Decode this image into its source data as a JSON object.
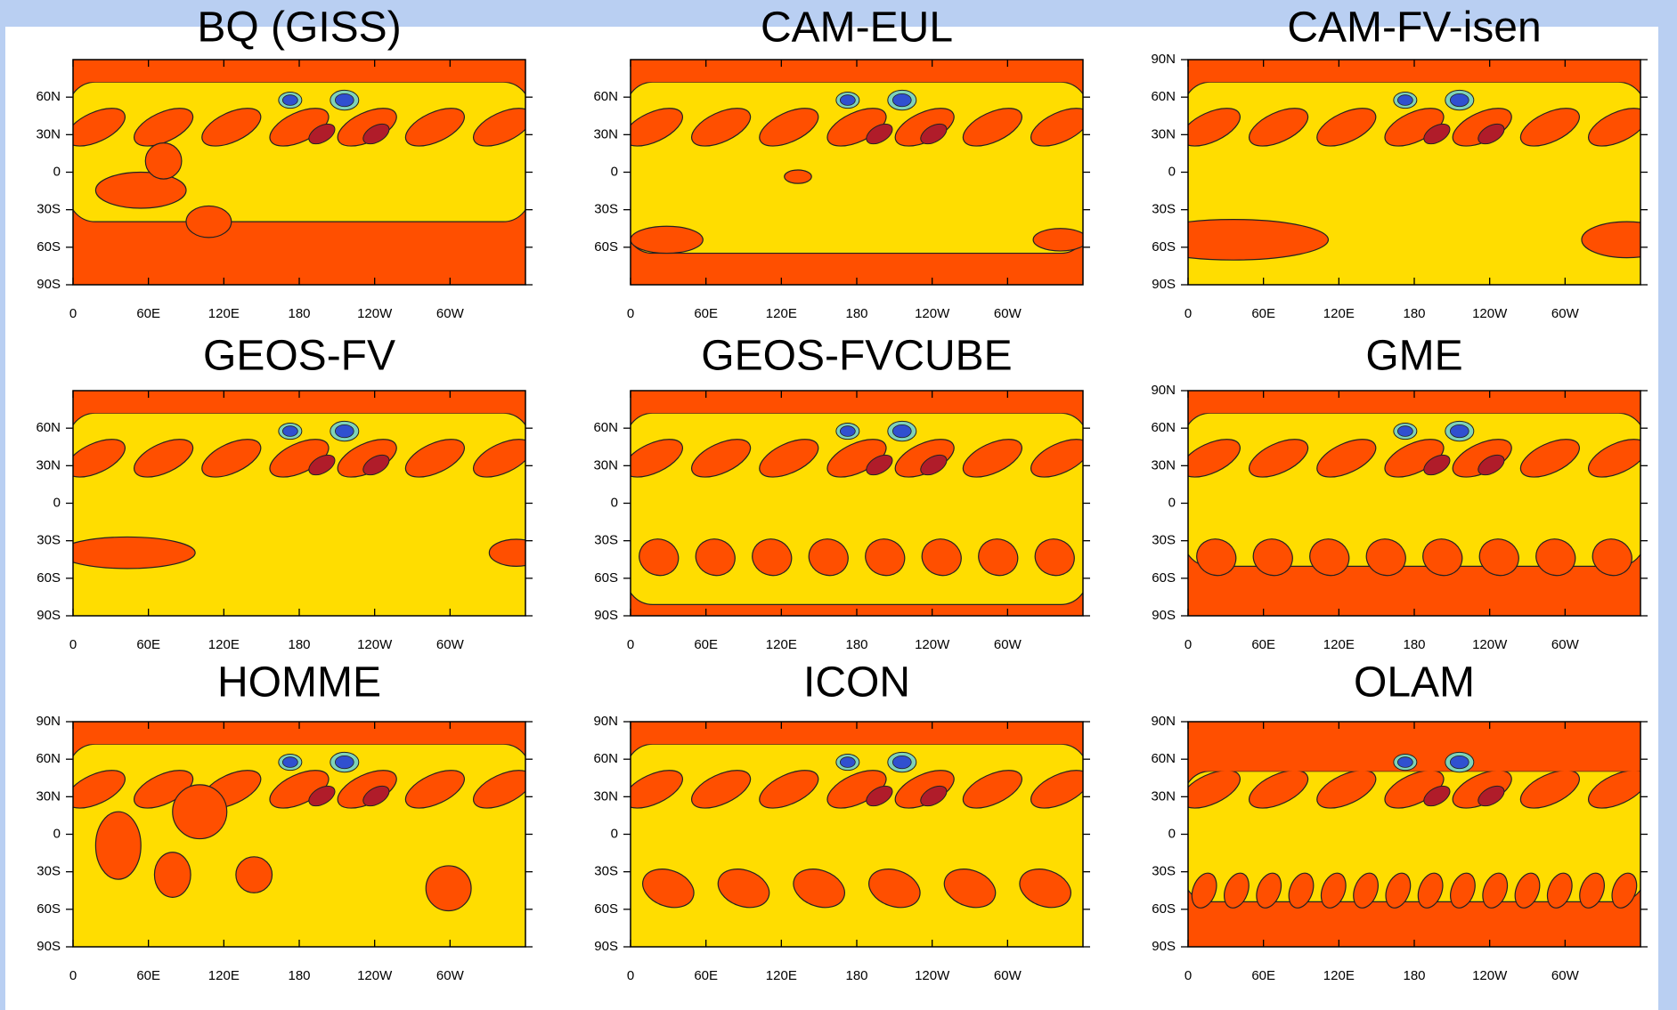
{
  "chart_data": [
    {
      "type": "contour",
      "title": "BQ (GISS)",
      "xlim": [
        0,
        360
      ],
      "ylim": [
        -90,
        90
      ],
      "xticks": [
        0,
        {
          "value": 60,
          "label": "60E"
        },
        {
          "value": 120,
          "label": "120E"
        },
        180,
        {
          "value": 240,
          "label": "120W"
        },
        {
          "value": 300,
          "label": "60W"
        }
      ],
      "yticks": [
        {
          "value": 60,
          "label": "60N"
        },
        {
          "value": 30,
          "label": "30N"
        },
        0,
        {
          "value": -30,
          "label": "30S"
        },
        {
          "value": -60,
          "label": "60S"
        },
        {
          "value": -90,
          "label": "90S"
        }
      ]
    },
    {
      "type": "contour",
      "title": "CAM-EUL",
      "xlim": [
        0,
        360
      ],
      "ylim": [
        -90,
        90
      ],
      "xticks": [
        0,
        {
          "value": 60,
          "label": "60E"
        },
        {
          "value": 120,
          "label": "120E"
        },
        180,
        {
          "value": 240,
          "label": "120W"
        },
        {
          "value": 300,
          "label": "60W"
        }
      ],
      "yticks": [
        {
          "value": 60,
          "label": "60N"
        },
        {
          "value": 30,
          "label": "30N"
        },
        0,
        {
          "value": -30,
          "label": "30S"
        },
        {
          "value": -60,
          "label": "60S"
        }
      ]
    },
    {
      "type": "contour",
      "title": "CAM-FV-isen",
      "xlim": [
        0,
        360
      ],
      "ylim": [
        -90,
        90
      ],
      "xticks": [
        0,
        {
          "value": 60,
          "label": "60E"
        },
        {
          "value": 120,
          "label": "120E"
        },
        180,
        {
          "value": 240,
          "label": "120W"
        },
        {
          "value": 300,
          "label": "60W"
        }
      ],
      "yticks": [
        {
          "value": 90,
          "label": "90N"
        },
        {
          "value": 60,
          "label": "60N"
        },
        {
          "value": 30,
          "label": "30N"
        },
        0,
        {
          "value": -30,
          "label": "30S"
        },
        {
          "value": -60,
          "label": "60S"
        },
        {
          "value": -90,
          "label": "90S"
        }
      ]
    },
    {
      "type": "contour",
      "title": "GEOS-FV",
      "xlim": [
        0,
        360
      ],
      "ylim": [
        -90,
        90
      ],
      "xticks": [
        0,
        {
          "value": 60,
          "label": "60E"
        },
        {
          "value": 120,
          "label": "120E"
        },
        180,
        {
          "value": 240,
          "label": "120W"
        },
        {
          "value": 300,
          "label": "60W"
        }
      ],
      "yticks": [
        {
          "value": 60,
          "label": "60N"
        },
        {
          "value": 30,
          "label": "30N"
        },
        0,
        {
          "value": -30,
          "label": "30S"
        },
        {
          "value": -60,
          "label": "60S"
        },
        {
          "value": -90,
          "label": "90S"
        }
      ]
    },
    {
      "type": "contour",
      "title": "GEOS-FVCUBE",
      "xlim": [
        0,
        360
      ],
      "ylim": [
        -90,
        90
      ],
      "xticks": [
        0,
        {
          "value": 60,
          "label": "60E"
        },
        {
          "value": 120,
          "label": "120E"
        },
        180,
        {
          "value": 240,
          "label": "120W"
        },
        {
          "value": 300,
          "label": "60W"
        }
      ],
      "yticks": [
        {
          "value": 60,
          "label": "60N"
        },
        {
          "value": 30,
          "label": "30N"
        },
        0,
        {
          "value": -30,
          "label": "30S"
        },
        {
          "value": -60,
          "label": "60S"
        },
        {
          "value": -90,
          "label": "90S"
        }
      ]
    },
    {
      "type": "contour",
      "title": "GME",
      "xlim": [
        0,
        360
      ],
      "ylim": [
        -90,
        90
      ],
      "xticks": [
        0,
        {
          "value": 60,
          "label": "60E"
        },
        {
          "value": 120,
          "label": "120E"
        },
        180,
        {
          "value": 240,
          "label": "120W"
        },
        {
          "value": 300,
          "label": "60W"
        }
      ],
      "yticks": [
        {
          "value": 90,
          "label": "90N"
        },
        {
          "value": 60,
          "label": "60N"
        },
        {
          "value": 30,
          "label": "30N"
        },
        0,
        {
          "value": -30,
          "label": "30S"
        },
        {
          "value": -60,
          "label": "60S"
        },
        {
          "value": -90,
          "label": "90S"
        }
      ]
    },
    {
      "type": "contour",
      "title": "HOMME",
      "xlim": [
        0,
        360
      ],
      "ylim": [
        -90,
        90
      ],
      "xticks": [
        0,
        {
          "value": 60,
          "label": "60E"
        },
        {
          "value": 120,
          "label": "120E"
        },
        180,
        {
          "value": 240,
          "label": "120W"
        },
        {
          "value": 300,
          "label": "60W"
        }
      ],
      "yticks": [
        {
          "value": 90,
          "label": "90N"
        },
        {
          "value": 60,
          "label": "60N"
        },
        {
          "value": 30,
          "label": "30N"
        },
        0,
        {
          "value": -30,
          "label": "30S"
        },
        {
          "value": -60,
          "label": "60S"
        },
        {
          "value": -90,
          "label": "90S"
        }
      ]
    },
    {
      "type": "contour",
      "title": "ICON",
      "xlim": [
        0,
        360
      ],
      "ylim": [
        -90,
        90
      ],
      "xticks": [
        0,
        {
          "value": 60,
          "label": "60E"
        },
        {
          "value": 120,
          "label": "120E"
        },
        180,
        {
          "value": 240,
          "label": "120W"
        },
        {
          "value": 300,
          "label": "60W"
        }
      ],
      "yticks": [
        {
          "value": 90,
          "label": "90N"
        },
        {
          "value": 60,
          "label": "60N"
        },
        {
          "value": 30,
          "label": "30N"
        },
        0,
        {
          "value": -30,
          "label": "30S"
        },
        {
          "value": -60,
          "label": "60S"
        },
        {
          "value": -90,
          "label": "90S"
        }
      ]
    },
    {
      "type": "contour",
      "title": "OLAM",
      "xlim": [
        0,
        360
      ],
      "ylim": [
        -90,
        90
      ],
      "xticks": [
        0,
        {
          "value": 60,
          "label": "60E"
        },
        {
          "value": 120,
          "label": "120E"
        },
        180,
        {
          "value": 240,
          "label": "120W"
        },
        {
          "value": 300,
          "label": "60W"
        }
      ],
      "yticks": [
        {
          "value": 90,
          "label": "90N"
        },
        {
          "value": 60,
          "label": "60N"
        },
        {
          "value": 30,
          "label": "30N"
        },
        0,
        {
          "value": -30,
          "label": "30S"
        },
        {
          "value": -60,
          "label": "60S"
        },
        {
          "value": -90,
          "label": "90S"
        }
      ]
    }
  ]
}
